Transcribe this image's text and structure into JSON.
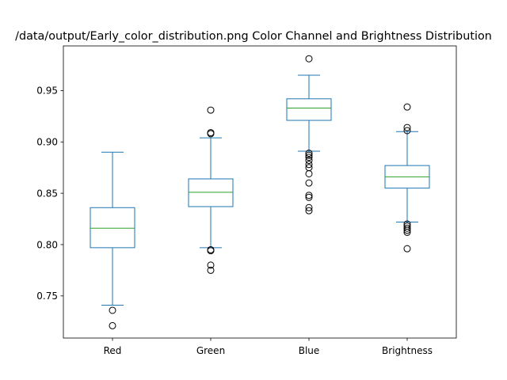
{
  "chart_data": {
    "type": "box",
    "title": "/data/output/Early_color_distribution.png Color Channel and Brightness Distribution",
    "xlabel": "",
    "ylabel": "",
    "ylim": [
      0.709,
      0.9935
    ],
    "yticks": [
      0.75,
      0.8,
      0.85,
      0.9,
      0.95
    ],
    "ytick_labels": [
      "0.75",
      "0.80",
      "0.85",
      "0.90",
      "0.95"
    ],
    "grid": false,
    "colors": {
      "box": "#1f77b4",
      "median": "#2ca02c",
      "outlier": "#000000",
      "axes": "#000000"
    },
    "categories": [
      "Red",
      "Green",
      "Blue",
      "Brightness"
    ],
    "boxes": [
      {
        "label": "Red",
        "whisker_low": 0.741,
        "q1": 0.797,
        "median": 0.816,
        "q3": 0.836,
        "whisker_high": 0.89,
        "outliers": [
          0.736,
          0.721
        ]
      },
      {
        "label": "Green",
        "whisker_low": 0.797,
        "q1": 0.837,
        "median": 0.851,
        "q3": 0.864,
        "whisker_high": 0.904,
        "outliers": [
          0.931,
          0.909,
          0.908,
          0.795,
          0.794,
          0.78,
          0.775
        ]
      },
      {
        "label": "Blue",
        "whisker_low": 0.891,
        "q1": 0.921,
        "median": 0.933,
        "q3": 0.942,
        "whisker_high": 0.965,
        "outliers": [
          0.981,
          0.889,
          0.887,
          0.885,
          0.882,
          0.878,
          0.875,
          0.869,
          0.86,
          0.848,
          0.846,
          0.836,
          0.833
        ]
      },
      {
        "label": "Brightness",
        "whisker_low": 0.822,
        "q1": 0.855,
        "median": 0.866,
        "q3": 0.877,
        "whisker_high": 0.91,
        "outliers": [
          0.934,
          0.914,
          0.911,
          0.82,
          0.818,
          0.816,
          0.814,
          0.812,
          0.796
        ]
      }
    ]
  }
}
